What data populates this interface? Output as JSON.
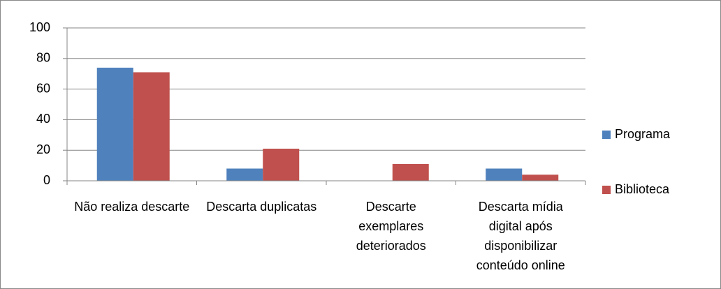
{
  "chart_data": {
    "type": "bar",
    "categories": [
      "Não realiza descarte",
      "Descarta duplicatas",
      "Descarte exemplares deteriorados",
      "Descarta mídia digital após disponibilizar conteúdo online"
    ],
    "series": [
      {
        "name": "Programa",
        "color": "#4f81bd",
        "values": [
          74,
          8,
          0,
          8
        ]
      },
      {
        "name": "Biblioteca",
        "color": "#c0504d",
        "values": [
          71,
          21,
          11,
          4
        ]
      }
    ],
    "ylim": [
      0,
      100
    ],
    "yticks": [
      0,
      20,
      40,
      60,
      80,
      100
    ],
    "grid": true,
    "legend": "right"
  }
}
